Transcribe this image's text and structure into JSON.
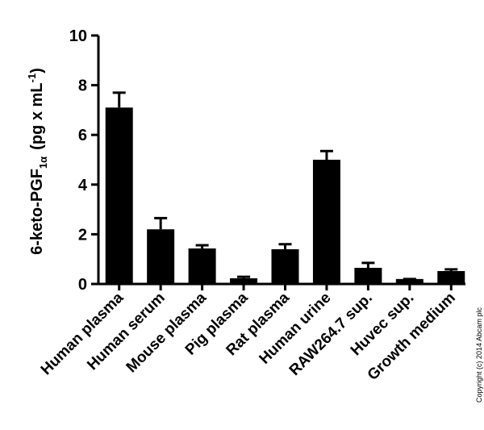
{
  "chart_data": {
    "type": "bar",
    "y_label": {
      "main": "6-keto-PGF",
      "subscript": "1α",
      "unit": "(pg x mL",
      "superscript": "-1",
      "close": ")"
    },
    "categories": [
      "Human plasma",
      "Human serum",
      "Mouse plasma",
      "Pig plasma",
      "Rat plasma",
      "Human urine",
      "RAW264.7 sup.",
      "Huvec sup.",
      "Growth medium"
    ],
    "values": [
      7.1,
      2.2,
      1.43,
      0.23,
      1.4,
      5.0,
      0.65,
      0.2,
      0.52
    ],
    "errors": [
      0.6,
      0.45,
      0.13,
      0.06,
      0.2,
      0.35,
      0.2,
      0.0,
      0.07
    ],
    "color": "#000000",
    "ylim": [
      0,
      10
    ],
    "yticks": [
      0,
      2,
      4,
      6,
      8,
      10
    ],
    "copyright": "Copyright (c) 2014 Abcam plc"
  }
}
